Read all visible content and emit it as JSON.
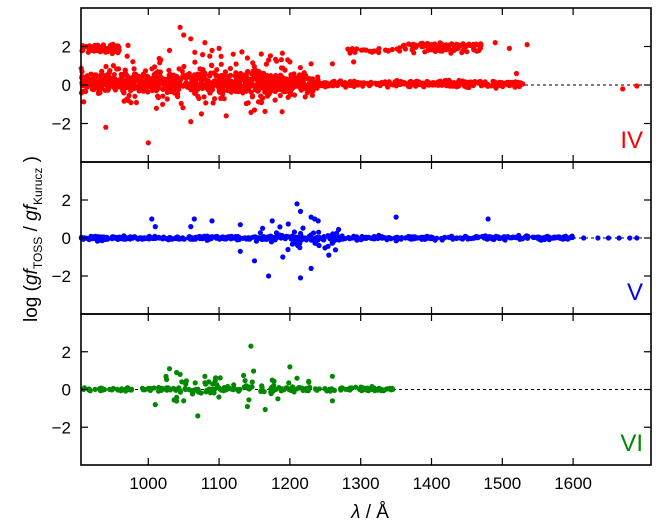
{
  "chart_data": {
    "type": "scatter",
    "layout": "three vertically stacked panels sharing the x axis",
    "x_axis": {
      "label_symbol": "λ",
      "label_unit": " / Å",
      "range": [
        905,
        1710
      ],
      "ticks": [
        1000,
        1100,
        1200,
        1300,
        1400,
        1500,
        1600
      ]
    },
    "y_axis": {
      "label_prefix": "log (",
      "label_var1": "gf",
      "label_sub1": "TOSS",
      "label_mid": " / ",
      "label_var2": "gf",
      "label_sub2": "Kurucz",
      "label_suffix": " )",
      "range": [
        -4,
        4
      ],
      "ticks": [
        -2,
        0,
        2
      ]
    },
    "reference_line": {
      "y": 0,
      "style": "dashed",
      "color": "#000000"
    },
    "grid": false,
    "panels": [
      {
        "label": "IV",
        "color": "#ff0000",
        "clusters": [
          {
            "x_range": [
              905,
              1240
            ],
            "center": 0.1,
            "spread": 0.28,
            "count": 700,
            "jitter": 0
          },
          {
            "x_range": [
              950,
              1200
            ],
            "center": 0.2,
            "spread": 0.45,
            "count": 150,
            "jitter": 1
          },
          {
            "x_range": [
              1240,
              1530
            ],
            "center": 0.05,
            "spread": 0.08,
            "count": 300,
            "jitter": 0
          },
          {
            "x_range": [
              905,
              960
            ],
            "center": 1.9,
            "spread": 0.1,
            "count": 70,
            "jitter": 0
          },
          {
            "x_range": [
              1280,
              1470
            ],
            "center": 1.8,
            "spread": 0.06,
            "count": 60,
            "jitter": 0
          },
          {
            "x_range": [
              1360,
              1470
            ],
            "center": 2.05,
            "spread": 0.06,
            "count": 70,
            "jitter": 0
          }
        ],
        "points": [
          {
            "x": 940,
            "y": -2.2
          },
          {
            "x": 1000,
            "y": -3.0
          },
          {
            "x": 1045,
            "y": 3.0
          },
          {
            "x": 1050,
            "y": 2.6
          },
          {
            "x": 1060,
            "y": 2.4
          },
          {
            "x": 1080,
            "y": 2.2
          },
          {
            "x": 1100,
            "y": 1.9
          },
          {
            "x": 1120,
            "y": 1.6
          },
          {
            "x": 1140,
            "y": 1.4
          },
          {
            "x": 1170,
            "y": 1.3
          },
          {
            "x": 1200,
            "y": 1.2
          },
          {
            "x": 1230,
            "y": 1.1
          },
          {
            "x": 1260,
            "y": 1.1
          },
          {
            "x": 1290,
            "y": 1.2
          },
          {
            "x": 1060,
            "y": -1.9
          },
          {
            "x": 1110,
            "y": -1.6
          },
          {
            "x": 1150,
            "y": -1.3
          },
          {
            "x": 1075,
            "y": -1.5
          },
          {
            "x": 1490,
            "y": 2.2
          },
          {
            "x": 1510,
            "y": 1.9
          },
          {
            "x": 1535,
            "y": 2.1
          },
          {
            "x": 1520,
            "y": 0.6
          },
          {
            "x": 1670,
            "y": -0.2
          },
          {
            "x": 1690,
            "y": -0.05
          },
          {
            "x": 1030,
            "y": 1.8
          },
          {
            "x": 1090,
            "y": 1.8
          },
          {
            "x": 1160,
            "y": -0.9
          }
        ]
      },
      {
        "label": "V",
        "color": "#0000ff",
        "clusters": [
          {
            "x_range": [
              905,
              1600
            ],
            "center": 0.0,
            "spread": 0.05,
            "count": 500,
            "jitter": 0
          },
          {
            "x_range": [
              1150,
              1270
            ],
            "center": 0.0,
            "spread": 0.35,
            "count": 60,
            "jitter": 0
          }
        ],
        "points": [
          {
            "x": 1005,
            "y": 1.0
          },
          {
            "x": 1010,
            "y": 0.6
          },
          {
            "x": 1060,
            "y": 0.6
          },
          {
            "x": 1065,
            "y": 1.0
          },
          {
            "x": 1090,
            "y": 0.9
          },
          {
            "x": 1130,
            "y": 0.7
          },
          {
            "x": 1175,
            "y": 0.9
          },
          {
            "x": 1210,
            "y": 1.8
          },
          {
            "x": 1215,
            "y": 1.4
          },
          {
            "x": 1230,
            "y": 1.1
          },
          {
            "x": 1240,
            "y": 0.9
          },
          {
            "x": 1235,
            "y": 1.0
          },
          {
            "x": 1350,
            "y": 1.1
          },
          {
            "x": 1480,
            "y": 1.0
          },
          {
            "x": 1170,
            "y": -2.0
          },
          {
            "x": 1215,
            "y": -2.1
          },
          {
            "x": 1230,
            "y": -1.6
          },
          {
            "x": 1150,
            "y": -1.2
          },
          {
            "x": 1190,
            "y": -1.0
          },
          {
            "x": 1255,
            "y": -0.9
          },
          {
            "x": 1130,
            "y": -0.7
          },
          {
            "x": 1615,
            "y": 0.0
          },
          {
            "x": 1635,
            "y": 0.0
          },
          {
            "x": 1650,
            "y": 0.0
          },
          {
            "x": 1665,
            "y": 0.0
          },
          {
            "x": 1680,
            "y": 0.0
          },
          {
            "x": 1690,
            "y": 0.0
          }
        ]
      },
      {
        "label": "VI",
        "color": "#008800",
        "clusters": [
          {
            "x_range": [
              905,
              1350
            ],
            "center": 0.0,
            "spread": 0.06,
            "count": 170,
            "jitter": 0
          },
          {
            "x_range": [
              1020,
              1230
            ],
            "center": 0.1,
            "spread": 0.35,
            "count": 60,
            "jitter": 0
          }
        ],
        "points": [
          {
            "x": 1030,
            "y": 1.1
          },
          {
            "x": 1040,
            "y": 0.9
          },
          {
            "x": 1045,
            "y": 0.8
          },
          {
            "x": 1025,
            "y": 0.7
          },
          {
            "x": 1080,
            "y": 0.7
          },
          {
            "x": 1095,
            "y": 0.6
          },
          {
            "x": 1145,
            "y": 2.3
          },
          {
            "x": 1175,
            "y": 0.5
          },
          {
            "x": 1200,
            "y": 1.2
          },
          {
            "x": 1210,
            "y": 0.6
          },
          {
            "x": 1260,
            "y": 0.7
          },
          {
            "x": 1070,
            "y": -1.4
          },
          {
            "x": 1140,
            "y": -0.9
          },
          {
            "x": 1050,
            "y": -0.6
          },
          {
            "x": 1010,
            "y": -0.8
          },
          {
            "x": 1260,
            "y": -0.6
          },
          {
            "x": 1300,
            "y": 0.0
          },
          {
            "x": 1315,
            "y": 0.0
          },
          {
            "x": 1330,
            "y": 0.0
          },
          {
            "x": 1345,
            "y": 0.0
          },
          {
            "x": 1285,
            "y": 0.0
          }
        ]
      }
    ]
  }
}
